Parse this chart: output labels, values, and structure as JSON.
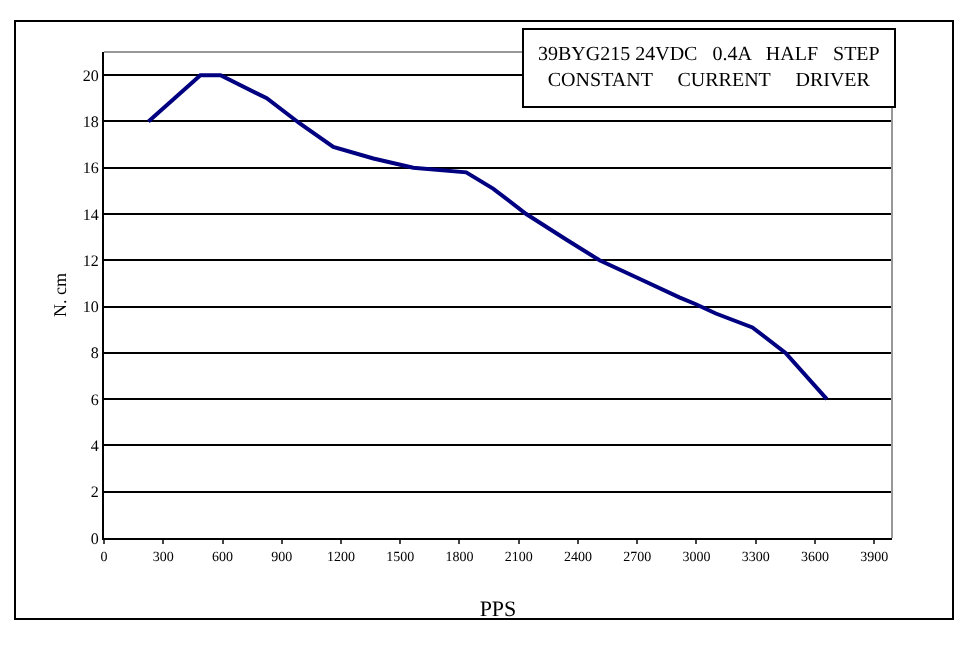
{
  "chart_data": {
    "type": "line",
    "title": "39BYG215 24VDC   0.4A   HALF   STEP\nCONSTANT     CURRENT     DRIVER",
    "xlabel": "PPS",
    "ylabel": "N. cm",
    "x": [
      225,
      488,
      590,
      824,
      993,
      1161,
      1364,
      1566,
      1834,
      1970,
      2138,
      2340,
      2509,
      2711,
      2913,
      2997,
      3098,
      3283,
      3451,
      3660
    ],
    "series": [
      {
        "color": "#000080",
        "values": [
          18,
          20,
          20,
          19,
          17.9,
          16.9,
          16.4,
          16,
          15.8,
          15.1,
          14,
          12.9,
          12,
          11.2,
          10.4,
          10.1,
          9.7,
          9.1,
          8,
          6
        ]
      }
    ],
    "xlim": [
      0,
      3990
    ],
    "xticks": [
      0,
      300,
      600,
      900,
      1200,
      1500,
      1800,
      2100,
      2400,
      2700,
      3000,
      3300,
      3600,
      3900
    ],
    "ylim": [
      0,
      21
    ],
    "yticks": [
      0,
      2,
      4,
      6,
      8,
      10,
      12,
      14,
      16,
      18,
      20
    ],
    "grid": "y",
    "marker": "none",
    "line_style": "solid"
  }
}
